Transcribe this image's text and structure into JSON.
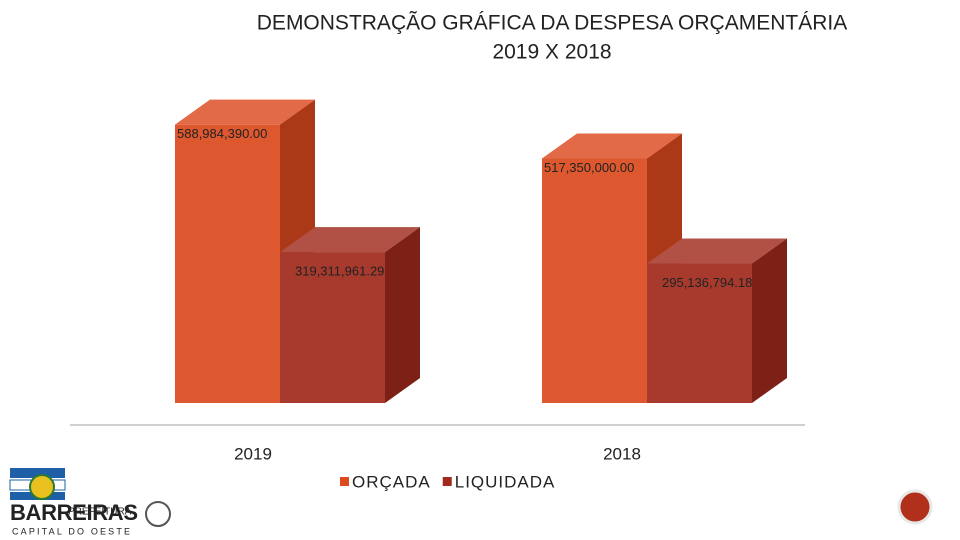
{
  "chart_data": {
    "type": "bar3d",
    "title": "DEMONSTRAÇÃO GRÁFICA DA DESPESA ORÇAMENTÁRIA",
    "subtitle": "2019 X 2018",
    "categories": [
      "2019",
      "2018"
    ],
    "series": [
      {
        "name": "ORÇADA",
        "color": "#dc4a1e",
        "values": [
          588984390.0,
          517350000.0
        ],
        "value_labels": [
          "588,984,390.00",
          "517,350,000.00"
        ]
      },
      {
        "name": "LIQUIDADA",
        "color": "#a02a1c",
        "values": [
          319311961.29,
          295136794.18
        ],
        "value_labels": [
          "319,311,961.29",
          "295,136,794.18"
        ]
      }
    ],
    "ylim": [
      0,
      620000000
    ],
    "legend": "bottom",
    "logo": {
      "top": "PREFEITURA",
      "name": "BARREIRAS",
      "bottom": "CAPITAL DO OESTE"
    }
  }
}
